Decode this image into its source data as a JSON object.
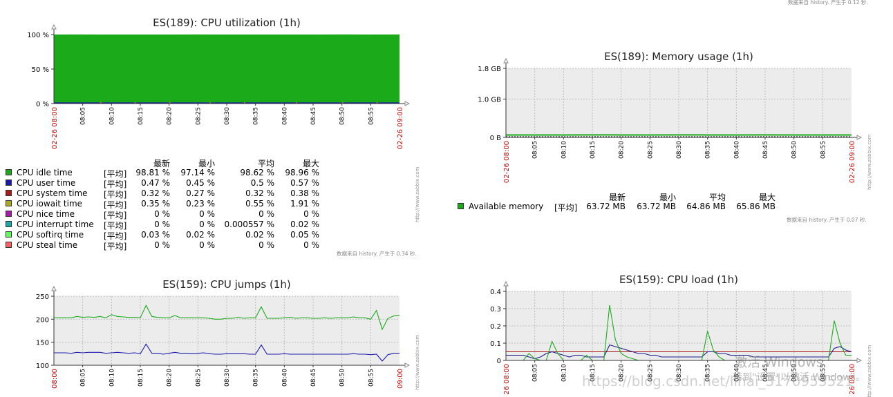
{
  "top_note": "数据来自 history. 产生于 0.12 秒.",
  "chart_data": [
    {
      "id": "c1",
      "type": "area",
      "title": "ES(189): CPU utilization (1h)",
      "ylim": [
        0,
        100
      ],
      "yticks": [
        {
          "value": 0,
          "label": "0 %"
        },
        {
          "value": 50,
          "label": "50 %"
        },
        {
          "value": 100,
          "label": "100 %"
        }
      ],
      "x_start_label": "02-26 08:00",
      "x_end_label": "02-26 09:00",
      "x_tick_labels": [
        "08:05",
        "08:10",
        "08:15",
        "08:20",
        "08:25",
        "08:30",
        "08:35",
        "08:40",
        "08:45",
        "08:50",
        "08:55"
      ],
      "series": [
        {
          "name": "CPU idle time",
          "color": "#1aaa1a",
          "func": "[平均]",
          "last": "98.81 %",
          "min": "97.14 %",
          "avg": "98.62 %",
          "max": "98.96 %",
          "values": [
            98.6,
            98.7,
            98.5,
            98.6,
            98.6,
            98.7,
            98.6,
            98.6,
            98.5,
            98.6,
            98.7,
            98.6,
            98.8
          ]
        },
        {
          "name": "CPU user time",
          "color": "#1a1aaa",
          "func": "[平均]",
          "last": "0.47 %",
          "min": "0.45 %",
          "avg": "0.5 %",
          "max": "0.57 %",
          "values": [
            0.5,
            0.5,
            0.5,
            0.5,
            0.5,
            0.5,
            0.5,
            0.5,
            0.5,
            0.5,
            0.5,
            0.5,
            0.47
          ]
        },
        {
          "name": "CPU system time",
          "color": "#aa1a1a",
          "func": "[平均]",
          "last": "0.32 %",
          "min": "0.27 %",
          "avg": "0.32 %",
          "max": "0.38 %"
        },
        {
          "name": "CPU iowait time",
          "color": "#aaaa1a",
          "func": "[平均]",
          "last": "0.35 %",
          "min": "0.23 %",
          "avg": "0.55 %",
          "max": "1.91 %"
        },
        {
          "name": "CPU nice time",
          "color": "#aa1aaa",
          "func": "[平均]",
          "last": "0 %",
          "min": "0 %",
          "avg": "0 %",
          "max": "0 %"
        },
        {
          "name": "CPU interrupt time",
          "color": "#1aaaaa",
          "func": "[平均]",
          "last": "0 %",
          "min": "0 %",
          "avg": "0.000557 %",
          "max": "0.02 %"
        },
        {
          "name": "CPU softirq time",
          "color": "#5dff5d",
          "func": "[平均]",
          "last": "0.03 %",
          "min": "0.02 %",
          "avg": "0.02 %",
          "max": "0.05 %"
        },
        {
          "name": "CPU steal time",
          "color": "#ff5d5d",
          "func": "[平均]",
          "last": "0 %",
          "min": "0 %",
          "avg": "0 %",
          "max": "0 %"
        }
      ],
      "legend_headers": {
        "last": "最新",
        "min": "最小",
        "avg": "平均",
        "max": "最大"
      },
      "footnote": "数据来自 history. 产生于 0.34 秒.",
      "watermark": "http://www.zabbix.com"
    },
    {
      "id": "c2",
      "type": "line",
      "title": "ES(189): Memory usage (1h)",
      "ylim": [
        0,
        1.8
      ],
      "yticks": [
        {
          "value": 0,
          "label": "0 B"
        },
        {
          "value": 1.0,
          "label": "1.0 GB"
        },
        {
          "value": 1.8,
          "label": "1.8 GB"
        }
      ],
      "x_start_label": "02-26 08:00",
      "x_end_label": "02-26 09:00",
      "x_tick_labels": [
        "08:05",
        "08:10",
        "08:15",
        "08:20",
        "08:25",
        "08:30",
        "08:35",
        "08:40",
        "08:45",
        "08:50",
        "08:55"
      ],
      "series": [
        {
          "name": "Available memory",
          "color": "#1aaa1a",
          "func": "[平均]",
          "last": "63.72 MB",
          "min": "63.72 MB",
          "avg": "64.86 MB",
          "max": "65.86 MB",
          "values": [
            0.063,
            0.064,
            0.064,
            0.065,
            0.064,
            0.064,
            0.065,
            0.064,
            0.064,
            0.065,
            0.064,
            0.064,
            0.064
          ]
        }
      ],
      "legend_headers": {
        "last": "最新",
        "min": "最小",
        "avg": "平均",
        "max": "最大"
      },
      "footnote": "数据来自 history. 产生于 0.07 秒.",
      "watermark": "http://www.zabbix.com"
    },
    {
      "id": "c3",
      "type": "line",
      "title": "ES(159): CPU jumps (1h)",
      "ylim": [
        100,
        250
      ],
      "yticks": [
        {
          "value": 100,
          "label": "100"
        },
        {
          "value": 150,
          "label": "150"
        },
        {
          "value": 200,
          "label": "200"
        },
        {
          "value": 250,
          "label": "250"
        }
      ],
      "x_start_label": "08:00",
      "x_end_label": "09:00",
      "x_tick_labels": [
        "08:05",
        "08:10",
        "08:15",
        "08:20",
        "08:25",
        "08:30",
        "08:35",
        "08:40",
        "08:45",
        "08:50",
        "08:55"
      ],
      "series": [
        {
          "color": "#1aaa1a",
          "x": [
            0,
            1,
            2,
            3,
            4,
            5,
            6,
            7,
            8,
            9,
            10,
            11,
            12,
            13,
            14,
            15,
            16,
            17,
            18,
            19,
            20,
            21,
            22,
            23,
            24,
            25,
            26,
            27,
            28,
            29,
            30,
            31,
            32,
            33,
            34,
            35,
            36,
            37,
            38,
            39,
            40,
            41,
            42,
            43,
            44,
            45,
            46,
            47,
            48,
            49,
            50,
            51,
            52,
            53,
            54,
            55,
            56,
            57,
            58,
            59,
            60
          ],
          "values": [
            203,
            203,
            203,
            203,
            206,
            204,
            205,
            204,
            206,
            203,
            210,
            206,
            205,
            204,
            204,
            203,
            230,
            206,
            204,
            203,
            203,
            208,
            203,
            203,
            203,
            203,
            203,
            202,
            200,
            200,
            202,
            202,
            204,
            202,
            203,
            203,
            227,
            202,
            202,
            202,
            203,
            204,
            202,
            203,
            203,
            202,
            202,
            203,
            202,
            203,
            203,
            203,
            205,
            203,
            203,
            200,
            219,
            178,
            202,
            207,
            209
          ]
        },
        {
          "color": "#1a1aaa",
          "x": [
            0,
            1,
            2,
            3,
            4,
            5,
            6,
            7,
            8,
            9,
            10,
            11,
            12,
            13,
            14,
            15,
            16,
            17,
            18,
            19,
            20,
            21,
            22,
            23,
            24,
            25,
            26,
            27,
            28,
            29,
            30,
            31,
            32,
            33,
            34,
            35,
            36,
            37,
            38,
            39,
            40,
            41,
            42,
            43,
            44,
            45,
            46,
            47,
            48,
            49,
            50,
            51,
            52,
            53,
            54,
            55,
            56,
            57,
            58,
            59,
            60
          ],
          "values": [
            127,
            127,
            127,
            126,
            128,
            127,
            128,
            128,
            128,
            126,
            127,
            128,
            127,
            126,
            127,
            125,
            146,
            126,
            126,
            124,
            126,
            128,
            126,
            126,
            125,
            126,
            127,
            125,
            124,
            124,
            125,
            125,
            125,
            125,
            124,
            124,
            144,
            124,
            124,
            124,
            125,
            124,
            124,
            124,
            124,
            124,
            124,
            124,
            124,
            124,
            124,
            124,
            125,
            124,
            124,
            123,
            124,
            109,
            123,
            126,
            126
          ]
        }
      ],
      "watermark": "http://www.zabbix.com"
    },
    {
      "id": "c4",
      "type": "line",
      "title": "ES(159): CPU load (1h)",
      "ylim": [
        0,
        0.4
      ],
      "yticks": [
        {
          "value": 0,
          "label": "0"
        },
        {
          "value": 0.1,
          "label": "0.1"
        },
        {
          "value": 0.2,
          "label": "0.2"
        },
        {
          "value": 0.3,
          "label": "0.3"
        },
        {
          "value": 0.4,
          "label": "0.4"
        }
      ],
      "x_start_label": "26 08:00",
      "x_end_label": "26 09:00",
      "x_tick_labels": [
        "08:05",
        "08:10",
        "08:15",
        "08:20",
        "08:25",
        "08:30",
        "08:35",
        "08:40",
        "08:45",
        "08:50",
        "08:55"
      ],
      "series": [
        {
          "color": "#aa1a1a",
          "x": [
            0,
            5,
            10,
            15,
            20,
            25,
            30,
            35,
            40,
            45,
            50,
            55,
            58,
            60
          ],
          "values": [
            0.05,
            0.05,
            0.05,
            0.05,
            0.05,
            0.05,
            0.05,
            0.05,
            0.05,
            0.05,
            0.05,
            0.05,
            0.05,
            0.05
          ]
        },
        {
          "color": "#1a1a8a",
          "x": [
            0,
            1,
            2,
            3,
            4,
            5,
            6,
            7,
            8,
            9,
            10,
            11,
            12,
            13,
            14,
            15,
            16,
            17,
            18,
            19,
            20,
            21,
            22,
            23,
            24,
            25,
            26,
            27,
            28,
            29,
            30,
            31,
            32,
            33,
            34,
            35,
            36,
            37,
            38,
            39,
            40,
            41,
            42,
            43,
            44,
            45,
            46,
            47,
            48,
            49,
            50,
            51,
            52,
            53,
            54,
            55,
            56,
            57,
            58,
            59,
            60
          ],
          "values": [
            0.03,
            0.03,
            0.03,
            0.03,
            0.02,
            0.01,
            0.02,
            0.04,
            0.05,
            0.04,
            0.03,
            0.02,
            0.03,
            0.03,
            0.02,
            0.02,
            0.02,
            0.02,
            0.09,
            0.08,
            0.07,
            0.06,
            0.05,
            0.04,
            0.04,
            0.03,
            0.03,
            0.02,
            0.02,
            0.02,
            0.02,
            0.02,
            0.02,
            0.02,
            0.02,
            0.05,
            0.05,
            0.04,
            0.04,
            0.03,
            0.03,
            0.03,
            0.03,
            0.02,
            0.02,
            0.02,
            0.02,
            0.02,
            0.02,
            0.02,
            0.02,
            0.02,
            0.02,
            0.02,
            0.02,
            0.02,
            0.02,
            0.07,
            0.08,
            0.06,
            0.05
          ]
        },
        {
          "color": "#1aaa1a",
          "x": [
            0,
            1,
            2,
            3,
            4,
            5,
            6,
            7,
            8,
            9,
            10,
            11,
            12,
            13,
            14,
            15,
            16,
            17,
            18,
            19,
            20,
            21,
            22,
            23,
            24,
            25,
            26,
            27,
            28,
            29,
            30,
            31,
            32,
            33,
            34,
            35,
            36,
            37,
            38,
            39,
            40,
            41,
            42,
            43,
            44,
            45,
            46,
            47,
            48,
            49,
            50,
            51,
            52,
            53,
            54,
            55,
            56,
            57,
            58,
            59,
            60
          ],
          "values": [
            0.0,
            0.0,
            0.0,
            0.0,
            0.04,
            0.01,
            0.0,
            0.0,
            0.11,
            0.04,
            0.0,
            0.0,
            0.0,
            0.0,
            0.03,
            0.0,
            0.0,
            0.0,
            0.32,
            0.12,
            0.04,
            0.02,
            0.01,
            0.0,
            0.0,
            0.0,
            0.0,
            0.0,
            0.0,
            0.0,
            0.0,
            0.0,
            0.0,
            0.0,
            0.0,
            0.17,
            0.06,
            0.02,
            0.0,
            0.0,
            0.0,
            0.0,
            0.0,
            0.0,
            0.0,
            0.0,
            0.0,
            0.0,
            0.0,
            0.0,
            0.0,
            0.0,
            0.0,
            0.0,
            0.0,
            0.0,
            0.0,
            0.23,
            0.1,
            0.03,
            0.03
          ]
        }
      ],
      "watermark": "http://www.zabbix.com"
    }
  ],
  "overlay": {
    "activate_line1": "激活 Windows",
    "activate_line2": "转到\"设置\"以激活 Windows。",
    "blog_watermark": "https://blog.csdn.net/lihai_3170953521"
  }
}
